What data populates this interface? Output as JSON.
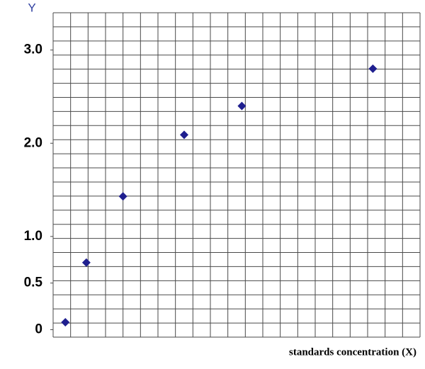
{
  "chart_data": {
    "type": "scatter",
    "y_label": "Y",
    "x_label": "standards concentration (X)",
    "x": [
      0.7,
      1.9,
      4.0,
      7.5,
      10.8,
      18.3
    ],
    "series": [
      {
        "color": "#1f1f8f",
        "values": [
          0.08,
          0.72,
          1.43,
          2.09,
          2.4,
          2.8
        ]
      }
    ],
    "xlim": [
      0,
      21
    ],
    "ylim": [
      -0.08,
      3.4
    ],
    "yticks": [
      0,
      0.5,
      {
        "value": 1,
        "label": "1.0"
      },
      {
        "value": 2,
        "label": "2.0"
      },
      {
        "value": 3,
        "label": "3.0"
      }
    ],
    "grid": true
  }
}
